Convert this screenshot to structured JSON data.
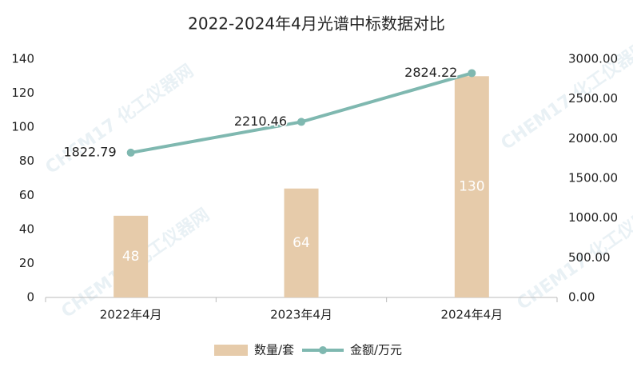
{
  "chart_data": {
    "type": "bar_line",
    "title": "2022-2024年4月光谱中标数据对比",
    "watermark": "CHEM17 化工仪器网",
    "categories": [
      "2022年4月",
      "2023年4月",
      "2024年4月"
    ],
    "series": [
      {
        "name": "数量/套",
        "type": "bar",
        "color": "#e6cbaa",
        "values": [
          48,
          64,
          130
        ]
      },
      {
        "name": "金额/万元",
        "type": "line",
        "axis": "y2",
        "color": "#7fb8b0",
        "values": [
          1822.79,
          2210.46,
          2824.22
        ]
      }
    ],
    "ylim": [
      0,
      140
    ],
    "yticks": [
      0,
      20,
      40,
      60,
      80,
      100,
      120,
      140
    ],
    "y2lim": [
      0,
      3000
    ],
    "y2ticks": [
      {
        "value": 0,
        "label": "0.00"
      },
      {
        "value": 500,
        "label": "500.00"
      },
      {
        "value": 1000,
        "label": "1000.00"
      },
      {
        "value": 1500,
        "label": "1500.00"
      },
      {
        "value": 2000,
        "label": "2000.00"
      },
      {
        "value": 2500,
        "label": "2500.00"
      },
      {
        "value": 3000,
        "label": "3000.00"
      }
    ],
    "grid": false,
    "legend": "bottom"
  }
}
